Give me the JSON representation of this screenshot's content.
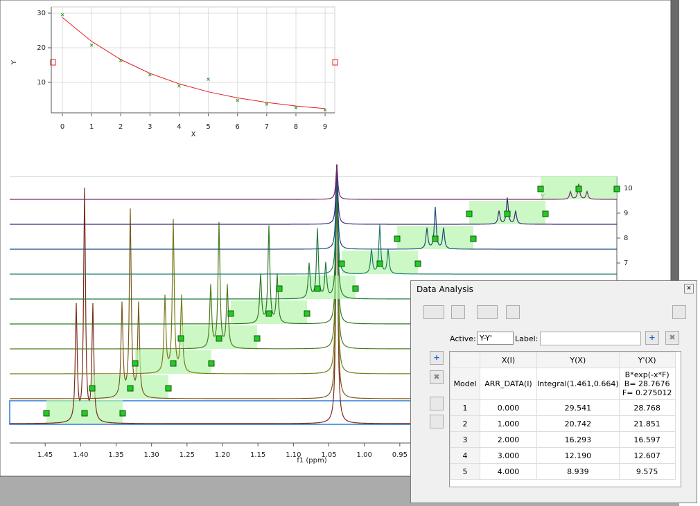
{
  "chart_data": [
    {
      "type": "scatter",
      "x_label": "X",
      "y_label": "Y",
      "x": [
        0,
        1,
        2,
        3,
        4,
        5,
        6,
        7,
        8,
        9
      ],
      "values": [
        29.541,
        20.742,
        16.293,
        12.19,
        8.939,
        10.9,
        4.8,
        3.7,
        2.7,
        2.0
      ],
      "fit_values": [
        28.768,
        21.851,
        16.597,
        12.607,
        9.575,
        7.27,
        5.52,
        4.2,
        3.19,
        2.42
      ],
      "color": "#2e9a2e",
      "fit_color": "#e02020",
      "xlim": [
        -0.38,
        9.33
      ],
      "xticks": [
        0,
        1,
        2,
        3,
        4,
        5,
        6,
        7,
        8,
        9
      ],
      "ylim": [
        1.2,
        31
      ],
      "yticks": [
        10,
        20,
        30
      ],
      "grid": true
    },
    {
      "type": "spectrum",
      "x_label": "f1 (ppm)",
      "trace_label": "Y",
      "xlim": [
        1.5,
        0.644
      ],
      "xticks": [
        1.45,
        {
          "value": 1.4,
          "label": "1.40"
        },
        1.35,
        {
          "value": 1.3,
          "label": "1.30"
        },
        1.25,
        {
          "value": 1.2,
          "label": "1.20"
        },
        1.15,
        {
          "value": 1.1,
          "label": "1.10"
        },
        1.05,
        {
          "value": 1.0,
          "label": "1.00"
        },
        0.95
      ],
      "ylim": [
        -0.22,
        10.47
      ],
      "yticks": [
        7,
        8,
        9,
        10
      ]
    }
  ],
  "dialog": {
    "title": "Data Analysis",
    "active_label": "Active:",
    "active_value": "Y-Y'",
    "label_label": "Label:",
    "table": {
      "columns": [
        "X(I)",
        "Y(X)",
        "Y'(X)"
      ],
      "model_row": [
        "Model",
        "ARR_DATA(I)",
        "Integral(1.461,0.664)",
        [
          "B*exp(-x*F)",
          "B= 28.7676",
          "F= 0.275012"
        ]
      ],
      "rows": [
        [
          "1",
          "0.000",
          "29.541",
          "28.768"
        ],
        [
          "2",
          "1.000",
          "20.742",
          "21.851"
        ],
        [
          "3",
          "2.000",
          "16.293",
          "16.597"
        ],
        [
          "4",
          "3.000",
          "12.190",
          "12.607"
        ],
        [
          "5",
          "4.000",
          "8.939",
          "9.575"
        ]
      ]
    }
  }
}
